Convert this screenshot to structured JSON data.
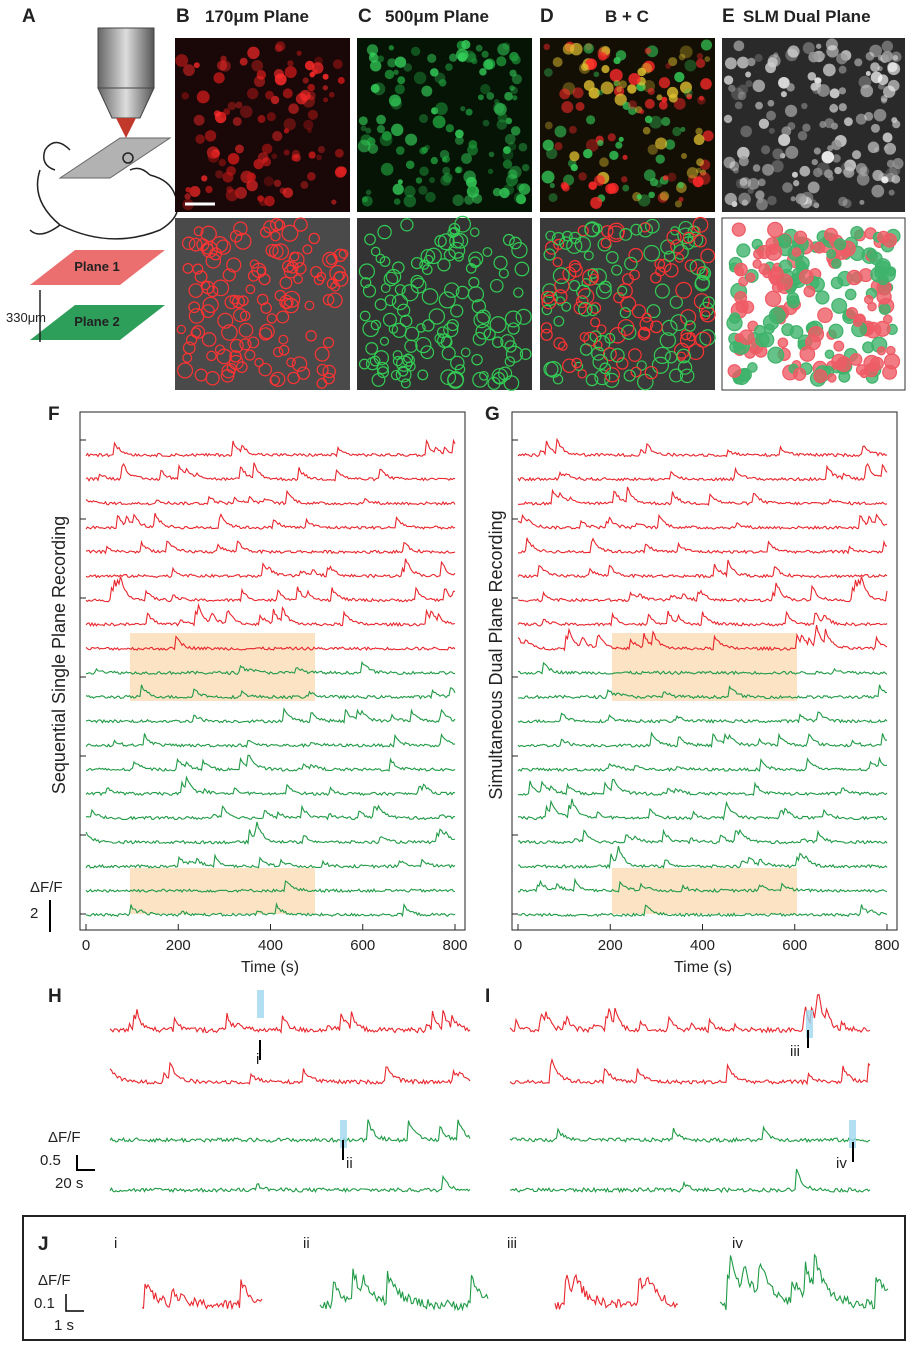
{
  "A": {
    "label": "A",
    "plane1": "Plane 1",
    "plane2": "Plane 2",
    "depth": "330μm"
  },
  "B": {
    "label": "B",
    "title": "170μm Plane"
  },
  "C": {
    "label": "C",
    "title": "500μm Plane"
  },
  "D": {
    "label": "D",
    "title": "B + C"
  },
  "E": {
    "label": "E",
    "title": "SLM Dual Plane"
  },
  "F": {
    "label": "F",
    "ylabel": "Sequential Single Plane Recording",
    "xlabel": "Time (s)",
    "xticks": [
      "0",
      "200",
      "400",
      "600",
      "800"
    ],
    "scale_unit": "ΔF/F",
    "scale_value": "2"
  },
  "G": {
    "label": "G",
    "ylabel": "Simultaneous Dual Plane Recording",
    "xlabel": "Time (s)",
    "xticks": [
      "0",
      "200",
      "400",
      "600",
      "800"
    ]
  },
  "H": {
    "label": "H",
    "scale_unit": "ΔF/F",
    "scale_value": "0.5",
    "scale_time": "20 s",
    "mark1": "i",
    "mark2": "ii"
  },
  "I": {
    "label": "I",
    "mark1": "iii",
    "mark2": "iv"
  },
  "J": {
    "label": "J",
    "sub": [
      "i",
      "ii",
      "iii",
      "iv"
    ],
    "scale_unit": "ΔF/F",
    "scale_value": "0.1",
    "scale_time": "1 s"
  }
}
